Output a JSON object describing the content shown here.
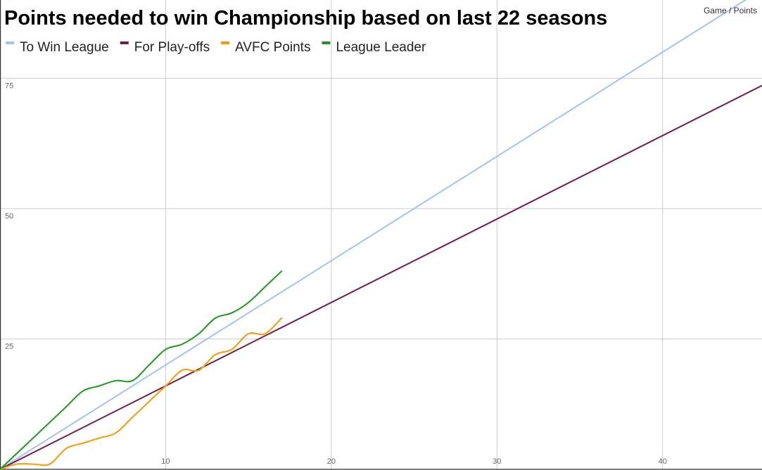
{
  "chart_data": {
    "type": "line",
    "title": "Points needed to win Championship based on last 22 seasons",
    "axis_note": "Game / Points",
    "xlabel": "",
    "ylabel": "",
    "xlim": [
      0,
      46
    ],
    "ylim": [
      0,
      90
    ],
    "x_ticks": [
      10,
      20,
      30,
      40
    ],
    "y_ticks": [
      25,
      50,
      75
    ],
    "grid": true,
    "legend_position": "top-left",
    "series": [
      {
        "name": "To Win League",
        "color": "#a4c2f4",
        "x": [
          0,
          46
        ],
        "y": [
          0,
          92
        ]
      },
      {
        "name": "For Play-offs",
        "color": "#741b47",
        "x": [
          0,
          46
        ],
        "y": [
          0,
          73.6
        ]
      },
      {
        "name": "AVFC Points",
        "color": "#ff9900",
        "x": [
          0,
          1,
          2,
          3,
          4,
          5,
          6,
          7,
          8,
          9,
          10,
          11,
          12,
          13,
          14,
          15,
          16,
          17
        ],
        "y": [
          0,
          1,
          1,
          1,
          4,
          5,
          6,
          7,
          10,
          13,
          16,
          19,
          19,
          22,
          23,
          26,
          26,
          29
        ]
      },
      {
        "name": "League Leader",
        "color": "#1a9a1a",
        "x": [
          0,
          1,
          2,
          3,
          4,
          5,
          6,
          7,
          8,
          9,
          10,
          11,
          12,
          13,
          14,
          15,
          16,
          17
        ],
        "y": [
          0,
          3,
          6,
          9,
          12,
          15,
          16,
          17,
          17,
          20,
          23,
          24,
          26,
          29,
          30,
          32,
          35,
          38
        ]
      }
    ]
  }
}
